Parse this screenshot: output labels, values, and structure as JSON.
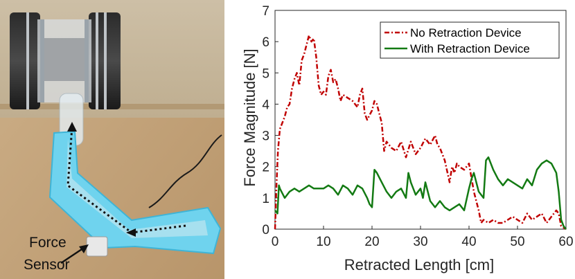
{
  "photo": {
    "label_line1": "Force",
    "label_line2": "Sensor"
  },
  "colors": {
    "no_retraction": "#c00000",
    "with_retraction": "#137a13",
    "tube": "#6fd3ee",
    "floor": "#c9a77c"
  },
  "chart_data": {
    "type": "line",
    "title": "",
    "xlabel": "Retracted Length [cm]",
    "ylabel": "Force Magnitude [N]",
    "xlim": [
      0,
      60
    ],
    "ylim": [
      0,
      7
    ],
    "xticks": [
      0,
      10,
      20,
      30,
      40,
      50,
      60
    ],
    "yticks": [
      0,
      1,
      2,
      3,
      4,
      5,
      6,
      7
    ],
    "legend_position": "top-right",
    "series": [
      {
        "name": "No Retraction Device",
        "style": "dash-dot",
        "color": "#c00000",
        "x": [
          0,
          0.3,
          0.6,
          1,
          1.5,
          2,
          2.5,
          3,
          3.5,
          4,
          4.5,
          5,
          5.5,
          6,
          6.5,
          7,
          7.5,
          8,
          8.5,
          9,
          9.5,
          10,
          10.5,
          11,
          11.5,
          12,
          12.5,
          13,
          13.5,
          14,
          15,
          16,
          17,
          17.5,
          18,
          18.5,
          19,
          20,
          20.5,
          21,
          21.5,
          22,
          22.5,
          23,
          24,
          25,
          26,
          27,
          28,
          29,
          30,
          31,
          32,
          33,
          33.5,
          34,
          35,
          36,
          36.5,
          37,
          37.5,
          38,
          39,
          40,
          41,
          42,
          42.5,
          43,
          44,
          45,
          46,
          47,
          48,
          49,
          50,
          51,
          52,
          53,
          54,
          55,
          56,
          57,
          58,
          58.5,
          59,
          60
        ],
        "values": [
          0.0,
          1.4,
          2.5,
          3.2,
          3.4,
          3.6,
          3.9,
          4.0,
          4.5,
          4.8,
          5.0,
          4.6,
          5.4,
          5.6,
          5.9,
          6.2,
          6.0,
          6.1,
          5.5,
          4.6,
          4.3,
          4.4,
          4.3,
          4.9,
          5.1,
          4.7,
          4.8,
          4.5,
          4.1,
          4.3,
          4.2,
          4.1,
          3.9,
          4.3,
          4.5,
          3.7,
          3.5,
          3.8,
          4.1,
          4.0,
          3.7,
          3.4,
          2.5,
          2.8,
          2.6,
          2.5,
          2.8,
          2.3,
          2.8,
          2.4,
          2.6,
          2.9,
          2.7,
          3.0,
          2.7,
          2.6,
          2.2,
          1.5,
          2.0,
          1.8,
          2.1,
          2.0,
          1.9,
          2.1,
          1.2,
          0.6,
          0.2,
          0.3,
          0.2,
          0.3,
          0.2,
          0.2,
          0.3,
          0.4,
          0.3,
          0.2,
          0.5,
          0.3,
          0.4,
          0.5,
          0.2,
          0.4,
          0.6,
          0.5,
          0.1,
          0.0
        ]
      },
      {
        "name": "With Retraction Device",
        "style": "solid",
        "color": "#137a13",
        "x": [
          0,
          0.5,
          0.8,
          1,
          2,
          3,
          4,
          5,
          6,
          7,
          8,
          9,
          10,
          11,
          12,
          13,
          14,
          15,
          16,
          17,
          18,
          19,
          19.5,
          20,
          20.5,
          21,
          22,
          23,
          24,
          25,
          26,
          27,
          27.5,
          28,
          29,
          30,
          30.5,
          31,
          31.5,
          32,
          33,
          34,
          35,
          36,
          37,
          38,
          39,
          40,
          40.5,
          41,
          42,
          43,
          43.5,
          44,
          45,
          46,
          47,
          48,
          49,
          50,
          51,
          52,
          53,
          54,
          55,
          56,
          57,
          58,
          58.5,
          59,
          59.5,
          60
        ],
        "values": [
          0.6,
          0.5,
          1.4,
          1.3,
          1.0,
          1.2,
          1.3,
          1.2,
          1.3,
          1.4,
          1.3,
          1.3,
          1.3,
          1.4,
          1.3,
          1.1,
          1.4,
          1.3,
          1.1,
          1.4,
          1.3,
          1.0,
          0.8,
          0.7,
          1.9,
          1.8,
          1.5,
          1.2,
          1.0,
          1.2,
          1.3,
          1.0,
          1.8,
          1.5,
          1.1,
          1.3,
          1.0,
          1.5,
          1.2,
          0.9,
          0.7,
          0.9,
          0.7,
          0.6,
          0.7,
          0.8,
          0.6,
          1.3,
          1.6,
          1.8,
          1.2,
          1.0,
          2.2,
          2.3,
          1.9,
          1.6,
          1.4,
          1.6,
          1.5,
          1.4,
          1.3,
          1.6,
          1.4,
          1.9,
          2.1,
          2.2,
          2.1,
          1.8,
          1.2,
          0.3,
          0.1,
          0.0
        ]
      }
    ]
  }
}
